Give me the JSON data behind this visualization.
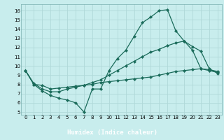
{
  "xlabel": "Humidex (Indice chaleur)",
  "xlim": [
    -0.5,
    23.5
  ],
  "ylim": [
    4.7,
    16.7
  ],
  "yticks": [
    5,
    6,
    7,
    8,
    9,
    10,
    11,
    12,
    13,
    14,
    15,
    16
  ],
  "xticks": [
    0,
    1,
    2,
    3,
    4,
    5,
    6,
    7,
    8,
    9,
    10,
    11,
    12,
    13,
    14,
    15,
    16,
    17,
    18,
    19,
    20,
    21,
    22,
    23
  ],
  "bg_color": "#c8eded",
  "grid_color": "#b0d8d8",
  "line_color": "#1a6b5a",
  "xlabel_bg": "#4a7a7a",
  "xlabel_fg": "#ffffff",
  "series": [
    {
      "x": [
        0,
        1,
        2,
        3,
        4,
        5,
        6,
        7,
        8,
        9,
        10,
        11,
        12,
        13,
        14,
        15,
        16,
        17,
        18,
        19,
        20,
        21,
        22,
        23
      ],
      "y": [
        9.5,
        8.0,
        7.3,
        6.8,
        6.5,
        6.3,
        6.0,
        5.0,
        7.5,
        7.5,
        9.5,
        10.8,
        11.7,
        13.2,
        14.7,
        15.3,
        16.0,
        16.1,
        13.8,
        12.7,
        11.7,
        9.7,
        9.5,
        9.3
      ]
    },
    {
      "x": [
        0,
        1,
        2,
        3,
        4,
        5,
        6,
        7,
        8,
        9,
        10,
        11,
        12,
        13,
        14,
        15,
        16,
        17,
        18,
        19,
        20,
        21,
        22,
        23
      ],
      "y": [
        9.5,
        8.1,
        7.5,
        7.2,
        7.2,
        7.5,
        7.7,
        7.9,
        8.2,
        8.5,
        9.0,
        9.5,
        10.0,
        10.5,
        11.0,
        11.5,
        11.8,
        12.2,
        12.5,
        12.7,
        12.1,
        11.6,
        9.7,
        9.2
      ]
    },
    {
      "x": [
        0,
        1,
        2,
        3,
        4,
        5,
        6,
        7,
        8,
        9,
        10,
        11,
        12,
        13,
        14,
        15,
        16,
        17,
        18,
        19,
        20,
        21,
        22,
        23
      ],
      "y": [
        9.5,
        8.0,
        7.9,
        7.5,
        7.6,
        7.7,
        7.8,
        7.9,
        8.0,
        8.2,
        8.3,
        8.4,
        8.5,
        8.6,
        8.7,
        8.8,
        9.0,
        9.2,
        9.4,
        9.5,
        9.6,
        9.7,
        9.6,
        9.4
      ]
    }
  ]
}
